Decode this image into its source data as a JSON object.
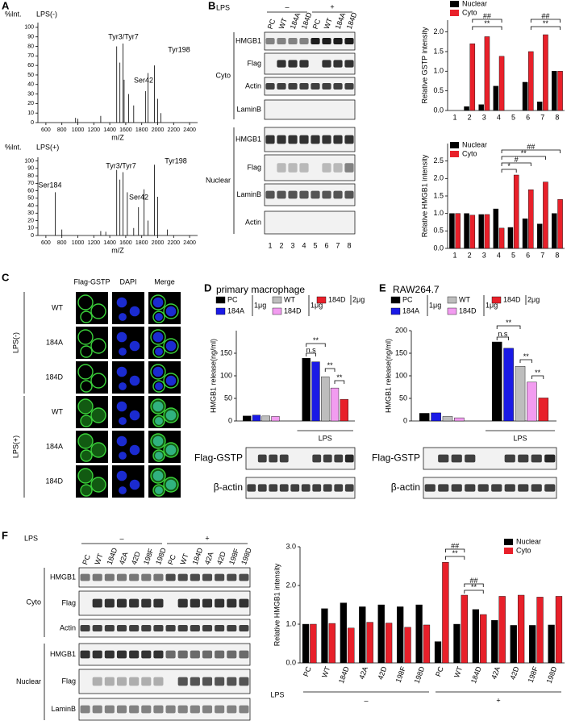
{
  "panel_labels": [
    "A",
    "B",
    "C",
    "D",
    "E",
    "F"
  ],
  "chart_data": [
    {
      "type": "spectrum",
      "title": "LPS(-)",
      "ylabel": "%Int.",
      "xlabel": "m/Z",
      "color": "#d0406a",
      "x": [
        972,
        1000,
        1287,
        1487,
        1527,
        1566,
        1580,
        1637,
        1700,
        1850,
        1880,
        1960,
        2000,
        2040
      ],
      "values": [
        5,
        4,
        7,
        80,
        63,
        83,
        45,
        30,
        18,
        33,
        52,
        60,
        25,
        10
      ],
      "xlim": [
        500,
        2500
      ],
      "xticks": [
        600,
        800,
        1000,
        1200,
        1400,
        1600,
        1800,
        2000,
        2200,
        2400
      ],
      "ylim": [
        0,
        105
      ],
      "yticks": [
        0,
        10,
        20,
        30,
        40,
        50,
        60,
        70,
        80,
        90,
        100
      ],
      "annotations": [
        "Tyr3/Tyr7",
        "Ser42",
        "Tyr198"
      ]
    },
    {
      "type": "spectrum",
      "title": "LPS(+)",
      "ylabel": "%Int.",
      "xlabel": "m/Z",
      "color": "#d0406a",
      "x": [
        717,
        800,
        1287,
        1350,
        1487,
        1527,
        1566,
        1620,
        1700,
        1760,
        1830,
        1880,
        1960,
        2000,
        2120
      ],
      "values": [
        58,
        8,
        6,
        5,
        88,
        75,
        85,
        58,
        10,
        38,
        62,
        20,
        95,
        52,
        8
      ],
      "xlim": [
        500,
        2500
      ],
      "xticks": [
        600,
        800,
        1000,
        1200,
        1400,
        1600,
        1800,
        2000,
        2200,
        2400
      ],
      "ylim": [
        0,
        105
      ],
      "yticks": [
        0,
        10,
        20,
        30,
        40,
        50,
        60,
        70,
        80,
        90,
        100
      ],
      "annotations": [
        "Ser184",
        "Tyr3/Tyr7",
        "Ser42",
        "Tyr198"
      ]
    },
    {
      "type": "bar",
      "ylabel": "Relative GSTP intensity",
      "categories": [
        "1",
        "2",
        "3",
        "4",
        "5",
        "6",
        "7",
        "8"
      ],
      "series": [
        {
          "name": "Nuclear",
          "color": "#000000",
          "values": [
            0,
            0.1,
            0.15,
            0.62,
            0,
            0.72,
            0.22,
            1.0
          ]
        },
        {
          "name": "Cyto",
          "color": "#e8202a",
          "values": [
            0,
            1.7,
            1.88,
            1.38,
            0,
            1.5,
            1.93,
            1.0
          ]
        }
      ],
      "ylim": [
        0,
        2.3
      ],
      "yticks": [
        {
          "value": 0,
          "label": "0.0"
        },
        0.5,
        {
          "value": 1,
          "label": "1.0"
        },
        1.5,
        {
          "value": 2,
          "label": "2.0"
        }
      ],
      "legend": "top-left",
      "annotations": [
        "**",
        "##",
        "**",
        "##"
      ]
    },
    {
      "type": "bar",
      "ylabel": "Relative HMGB1 intensity",
      "categories": [
        "1",
        "2",
        "3",
        "4",
        "5",
        "6",
        "7",
        "8"
      ],
      "series": [
        {
          "name": "Nuclear",
          "color": "#000000",
          "values": [
            1.0,
            1.0,
            0.97,
            1.13,
            0.6,
            0.85,
            0.7,
            1.0
          ]
        },
        {
          "name": "Cyto",
          "color": "#e8202a",
          "values": [
            1.0,
            0.95,
            0.97,
            0.58,
            2.1,
            1.68,
            1.9,
            1.4
          ]
        }
      ],
      "ylim": [
        0,
        3
      ],
      "yticks": [
        {
          "value": 0,
          "label": "0.0"
        },
        0.5,
        {
          "value": 1,
          "label": "1.0"
        },
        1.5,
        {
          "value": 2,
          "label": "2.0"
        },
        2.5
      ],
      "legend": "top-left",
      "annotations": [
        "*",
        "#",
        "**",
        "##"
      ]
    },
    {
      "type": "bar",
      "title": "primary macrophage",
      "ylabel": "HMGB1 release(ng/ml)",
      "categories": [
        null,
        "LPS"
      ],
      "series": [
        {
          "name": "PC",
          "color": "#000000",
          "values": [
            11,
            139
          ]
        },
        {
          "name": "184A",
          "color": "#1a1ae6",
          "values": [
            13,
            131
          ]
        },
        {
          "name": "WT",
          "color": "#bdbdbd",
          "values": [
            11,
            98
          ]
        },
        {
          "name": "184D",
          "color": "#f29cf0",
          "values": [
            10,
            73
          ]
        },
        {
          "name": "184D",
          "color": "#e8202a",
          "values": [
            null,
            48
          ]
        }
      ],
      "doses": [
        "1μg",
        "1μg",
        "2μg"
      ],
      "ylim": [
        0,
        200
      ],
      "yticks": [
        0,
        50,
        100,
        150
      ],
      "legend": "above",
      "annotations": [
        "**",
        "n.s",
        "**",
        "**"
      ]
    },
    {
      "type": "bar",
      "title": "RAW264.7",
      "ylabel": "HMGB1 release(ng/ml)",
      "categories": [
        null,
        "LPS"
      ],
      "series": [
        {
          "name": "PC",
          "color": "#000000",
          "values": [
            17,
            175
          ]
        },
        {
          "name": "184A",
          "color": "#1a1ae6",
          "values": [
            18,
            161
          ]
        },
        {
          "name": "WT",
          "color": "#bdbdbd",
          "values": [
            10,
            121
          ]
        },
        {
          "name": "184D",
          "color": "#f29cf0",
          "values": [
            7,
            86
          ]
        },
        {
          "name": "184D",
          "color": "#e8202a",
          "values": [
            null,
            51
          ]
        }
      ],
      "doses": [
        "1μg",
        "1μg",
        "2μg"
      ],
      "ylim": [
        0,
        200
      ],
      "yticks": [
        0,
        50,
        100,
        150,
        200
      ],
      "legend": "above",
      "annotations": [
        "**",
        "n.s",
        "**",
        "**"
      ]
    },
    {
      "type": "bar",
      "ylabel": "Relative HMGB1 intensity",
      "categories": [
        "PC",
        "WT",
        "184D",
        "42A",
        "42D",
        "198F",
        "198D",
        "PC",
        "WT",
        "184D",
        "42A",
        "42D",
        "198F",
        "198D"
      ],
      "series": [
        {
          "name": "Nuclear",
          "color": "#000000",
          "values": [
            1.0,
            1.4,
            1.55,
            1.45,
            1.5,
            1.45,
            1.5,
            0.55,
            1.0,
            1.38,
            1.1,
            0.97,
            0.97,
            0.98
          ]
        },
        {
          "name": "Cyto",
          "color": "#e8202a",
          "values": [
            1.0,
            1.02,
            0.9,
            1.05,
            1.03,
            0.92,
            0.98,
            2.6,
            1.75,
            1.25,
            1.72,
            1.75,
            1.7,
            1.72
          ]
        }
      ],
      "ylim": [
        0,
        3
      ],
      "yticks": [
        {
          "value": 0,
          "label": "0.0"
        },
        {
          "value": 1,
          "label": "1.0"
        },
        {
          "value": 2,
          "label": "2.0"
        },
        {
          "value": 3,
          "label": "3.0"
        }
      ],
      "group_label": "LPS",
      "groups": [
        "–",
        "+"
      ],
      "legend": "top-right",
      "annotations": [
        "**",
        "##",
        "##",
        "**"
      ]
    }
  ],
  "blot_B": {
    "treatment_label": "LPS",
    "groups": [
      "–",
      "+"
    ],
    "lanes": [
      "PC",
      "WT",
      "184A",
      "184D",
      "PC",
      "WT",
      "184A",
      "184D"
    ],
    "lane_numbers": [
      "1",
      "2",
      "3",
      "4",
      "5",
      "6",
      "7",
      "8"
    ],
    "sections": [
      {
        "name": "Cyto",
        "rows": [
          "HMGB1",
          "Flag",
          "Actin",
          "LaminB"
        ]
      },
      {
        "name": "Nuclear",
        "rows": [
          "HMGB1",
          "Flag",
          "LaminB",
          "Actin"
        ]
      }
    ]
  },
  "microscopy_C": {
    "columns": [
      "Flag-GSTP",
      "DAPI",
      "Merge"
    ],
    "groups": [
      {
        "name": "LPS(-)",
        "rows": [
          "WT",
          "184A",
          "184D"
        ]
      },
      {
        "name": "LPS(+)",
        "rows": [
          "WT",
          "184A",
          "184D"
        ]
      }
    ]
  },
  "blot_D": {
    "rows": [
      "Flag-GSTP",
      "β-actin"
    ]
  },
  "blot_E": {
    "rows": [
      "Flag-GSTP",
      "β-actin"
    ]
  },
  "blot_F": {
    "treatment_label": "LPS",
    "groups": [
      "–",
      "+"
    ],
    "lanes": [
      "PC",
      "WT",
      "184D",
      "42A",
      "42D",
      "198F",
      "198D",
      "PC",
      "WT",
      "184D",
      "42A",
      "42D",
      "198F",
      "198D"
    ],
    "sections": [
      {
        "name": "Cyto",
        "rows": [
          "HMGB1",
          "Flag",
          "Actin"
        ]
      },
      {
        "name": "Nuclear",
        "rows": [
          "HMGB1",
          "Flag",
          "LaminB"
        ]
      }
    ]
  }
}
